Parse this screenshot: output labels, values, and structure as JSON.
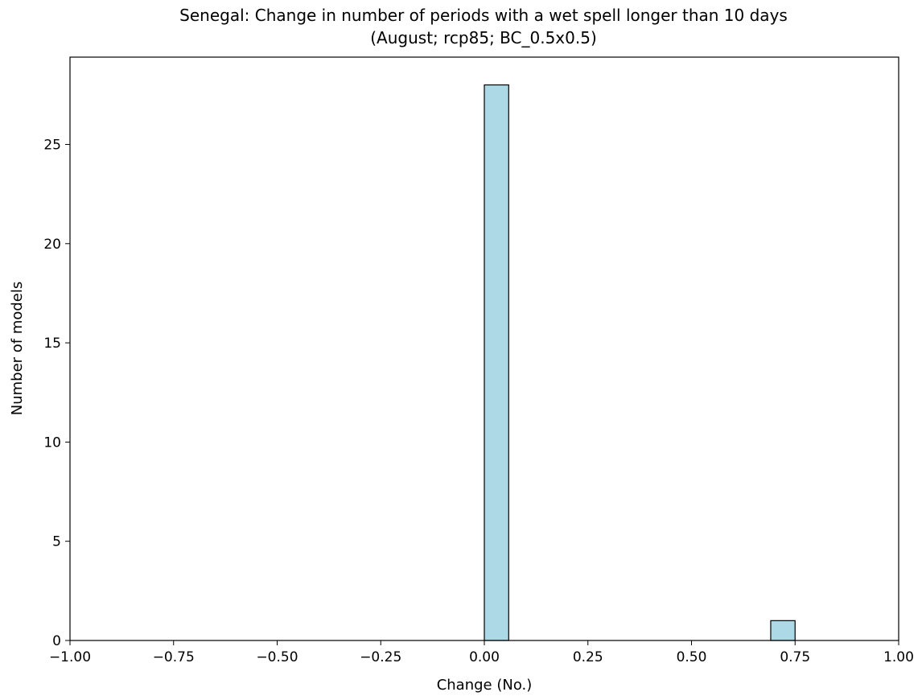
{
  "chart_data": {
    "type": "bar",
    "title": "Senegal: Change in number of periods with a wet spell longer than 10 days",
    "subtitle": "(August; rcp85; BC_0.5x0.5)",
    "xlabel": "Change (No.)",
    "ylabel": "Number of models",
    "xlim": [
      -1.0,
      1.0
    ],
    "ylim": [
      0,
      29.4
    ],
    "xticks": [
      "−1.00",
      "−0.75",
      "−0.50",
      "−0.25",
      "0.00",
      "0.25",
      "0.50",
      "0.75",
      "1.00"
    ],
    "xtick_values": [
      -1.0,
      -0.75,
      -0.5,
      -0.25,
      0.0,
      0.25,
      0.5,
      0.75,
      1.0
    ],
    "yticks": [
      "0",
      "5",
      "10",
      "15",
      "20",
      "25"
    ],
    "ytick_values": [
      0,
      5,
      10,
      15,
      20,
      25
    ],
    "bins": [
      {
        "start": 0.0,
        "end": 0.0588,
        "count": 28
      },
      {
        "start": 0.6912,
        "end": 0.75,
        "count": 1
      }
    ],
    "bar_color": "#add8e6",
    "edge_color": "#000000",
    "grid": false
  }
}
